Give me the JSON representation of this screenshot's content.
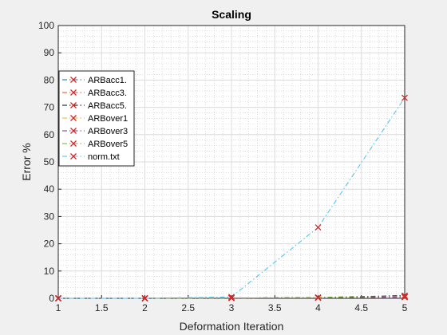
{
  "chart_data": {
    "type": "line",
    "title": "Scaling",
    "xlabel": "Deformation Iteration",
    "ylabel": "Error %",
    "xlim": [
      1,
      5
    ],
    "ylim": [
      0,
      100
    ],
    "xticks": [
      1,
      1.5,
      2,
      2.5,
      3,
      3.5,
      4,
      4.5,
      5
    ],
    "xtick_labels": [
      "1",
      "1.5",
      "2",
      "2.5",
      "3",
      "3.5",
      "4",
      "4.5",
      "5"
    ],
    "yticks": [
      0,
      10,
      20,
      30,
      40,
      50,
      60,
      70,
      80,
      90,
      100
    ],
    "ytick_labels": [
      "0",
      "10",
      "20",
      "30",
      "40",
      "50",
      "60",
      "70",
      "80",
      "90",
      "100"
    ],
    "grid": true,
    "minor_grid": true,
    "legend_position": "upper-left",
    "marker": "x",
    "marker_color": "#d62728",
    "x": [
      1,
      2,
      3,
      4,
      5
    ],
    "series": [
      {
        "name": "ARBacc1.",
        "color": "#0072bd",
        "values": [
          0,
          0,
          0.1,
          0.2,
          0.5
        ]
      },
      {
        "name": "ARBacc3.",
        "color": "#d95319",
        "values": [
          0,
          0,
          0.1,
          0.2,
          0.6
        ]
      },
      {
        "name": "ARBacc5.",
        "color": "#000000",
        "values": [
          0,
          0,
          0.1,
          0.3,
          1.0
        ]
      },
      {
        "name": "ARBover1",
        "color": "#edb120",
        "values": [
          0,
          0,
          0.1,
          0.2,
          0.4
        ]
      },
      {
        "name": "ARBover3",
        "color": "#7e2f8e",
        "values": [
          0,
          0,
          0.1,
          0.2,
          0.5
        ]
      },
      {
        "name": "ARBover5",
        "color": "#77ac30",
        "values": [
          0,
          0,
          0.1,
          0.3,
          0.8
        ]
      },
      {
        "name": "norm.txt",
        "color": "#4dbeee",
        "values": [
          0,
          0,
          0.5,
          26,
          73.5
        ]
      }
    ]
  }
}
